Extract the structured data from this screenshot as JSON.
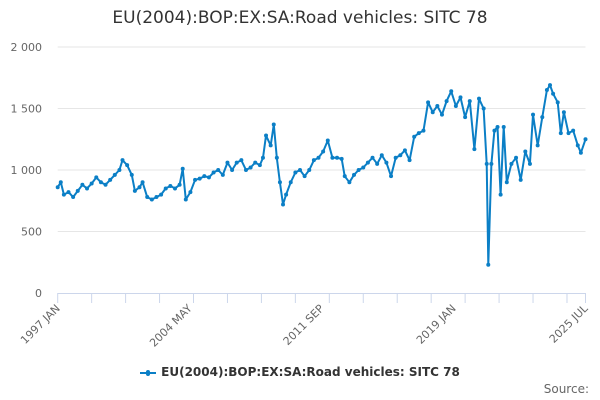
{
  "chart_data": {
    "type": "line",
    "title": "EU(2004):BOP:EX:SA:Road vehicles: SITC 78",
    "xlabel": "",
    "ylabel": "",
    "ylim": [
      0,
      2000
    ],
    "y_ticks": [
      "0",
      "500",
      "1 000",
      "1 500",
      "2 000"
    ],
    "x_tick_labels": [
      "1997 JAN",
      "2004 MAY",
      "2011 SEP",
      "2019 JAN",
      "2025 JUL"
    ],
    "x_range": [
      "1997-01",
      "2025-07"
    ],
    "grid": "horizontal",
    "legend": "bottom",
    "color": "#0b7fc6",
    "series": [
      {
        "name": "EU(2004):BOP:EX:SA:Road vehicles: SITC 78",
        "points": [
          [
            "1997-01",
            860
          ],
          [
            "1997-03",
            900
          ],
          [
            "1997-05",
            800
          ],
          [
            "1997-08",
            820
          ],
          [
            "1997-11",
            780
          ],
          [
            "1998-02",
            830
          ],
          [
            "1998-05",
            880
          ],
          [
            "1998-08",
            850
          ],
          [
            "1998-11",
            890
          ],
          [
            "1999-02",
            940
          ],
          [
            "1999-05",
            900
          ],
          [
            "1999-08",
            880
          ],
          [
            "1999-11",
            920
          ],
          [
            "2000-02",
            960
          ],
          [
            "2000-05",
            1000
          ],
          [
            "2000-07",
            1080
          ],
          [
            "2000-10",
            1040
          ],
          [
            "2001-01",
            960
          ],
          [
            "2001-03",
            830
          ],
          [
            "2001-06",
            860
          ],
          [
            "2001-08",
            900
          ],
          [
            "2001-11",
            780
          ],
          [
            "2002-02",
            760
          ],
          [
            "2002-05",
            780
          ],
          [
            "2002-08",
            800
          ],
          [
            "2002-11",
            850
          ],
          [
            "2003-02",
            870
          ],
          [
            "2003-05",
            850
          ],
          [
            "2003-08",
            880
          ],
          [
            "2003-10",
            1010
          ],
          [
            "2003-12",
            760
          ],
          [
            "2004-03",
            820
          ],
          [
            "2004-06",
            920
          ],
          [
            "2004-09",
            930
          ],
          [
            "2004-12",
            950
          ],
          [
            "2005-03",
            940
          ],
          [
            "2005-06",
            980
          ],
          [
            "2005-09",
            1000
          ],
          [
            "2005-12",
            960
          ],
          [
            "2006-03",
            1060
          ],
          [
            "2006-06",
            1000
          ],
          [
            "2006-09",
            1060
          ],
          [
            "2006-12",
            1080
          ],
          [
            "2007-03",
            1000
          ],
          [
            "2007-06",
            1020
          ],
          [
            "2007-09",
            1060
          ],
          [
            "2007-12",
            1040
          ],
          [
            "2008-02",
            1100
          ],
          [
            "2008-04",
            1280
          ],
          [
            "2008-07",
            1200
          ],
          [
            "2008-09",
            1370
          ],
          [
            "2008-11",
            1100
          ],
          [
            "2009-01",
            900
          ],
          [
            "2009-03",
            720
          ],
          [
            "2009-05",
            800
          ],
          [
            "2009-08",
            900
          ],
          [
            "2009-11",
            980
          ],
          [
            "2010-02",
            1000
          ],
          [
            "2010-05",
            950
          ],
          [
            "2010-08",
            1000
          ],
          [
            "2010-11",
            1080
          ],
          [
            "2011-02",
            1100
          ],
          [
            "2011-05",
            1150
          ],
          [
            "2011-08",
            1240
          ],
          [
            "2011-11",
            1100
          ],
          [
            "2012-02",
            1100
          ],
          [
            "2012-05",
            1090
          ],
          [
            "2012-07",
            950
          ],
          [
            "2012-10",
            900
          ],
          [
            "2013-01",
            960
          ],
          [
            "2013-04",
            1000
          ],
          [
            "2013-07",
            1020
          ],
          [
            "2013-10",
            1060
          ],
          [
            "2014-01",
            1100
          ],
          [
            "2014-04",
            1050
          ],
          [
            "2014-07",
            1120
          ],
          [
            "2014-10",
            1060
          ],
          [
            "2015-01",
            950
          ],
          [
            "2015-04",
            1100
          ],
          [
            "2015-07",
            1120
          ],
          [
            "2015-10",
            1160
          ],
          [
            "2016-01",
            1080
          ],
          [
            "2016-04",
            1270
          ],
          [
            "2016-07",
            1300
          ],
          [
            "2016-10",
            1320
          ],
          [
            "2017-01",
            1550
          ],
          [
            "2017-04",
            1470
          ],
          [
            "2017-07",
            1520
          ],
          [
            "2017-10",
            1450
          ],
          [
            "2018-01",
            1560
          ],
          [
            "2018-04",
            1640
          ],
          [
            "2018-07",
            1520
          ],
          [
            "2018-10",
            1590
          ],
          [
            "2019-01",
            1430
          ],
          [
            "2019-04",
            1560
          ],
          [
            "2019-07",
            1170
          ],
          [
            "2019-10",
            1580
          ],
          [
            "2020-01",
            1500
          ],
          [
            "2020-03",
            1050
          ],
          [
            "2020-04",
            230
          ],
          [
            "2020-06",
            1050
          ],
          [
            "2020-08",
            1320
          ],
          [
            "2020-10",
            1350
          ],
          [
            "2020-12",
            800
          ],
          [
            "2021-02",
            1350
          ],
          [
            "2021-04",
            900
          ],
          [
            "2021-07",
            1050
          ],
          [
            "2021-10",
            1100
          ],
          [
            "2022-01",
            920
          ],
          [
            "2022-04",
            1150
          ],
          [
            "2022-07",
            1050
          ],
          [
            "2022-09",
            1450
          ],
          [
            "2022-12",
            1200
          ],
          [
            "2023-03",
            1430
          ],
          [
            "2023-06",
            1650
          ],
          [
            "2023-08",
            1690
          ],
          [
            "2023-10",
            1620
          ],
          [
            "2024-01",
            1550
          ],
          [
            "2024-03",
            1300
          ],
          [
            "2024-05",
            1470
          ],
          [
            "2024-08",
            1300
          ],
          [
            "2024-11",
            1320
          ],
          [
            "2025-02",
            1200
          ],
          [
            "2025-04",
            1140
          ],
          [
            "2025-07",
            1250
          ]
        ]
      }
    ]
  },
  "legend_label": "EU(2004):BOP:EX:SA:Road vehicles: SITC 78",
  "source_label": "Source:"
}
